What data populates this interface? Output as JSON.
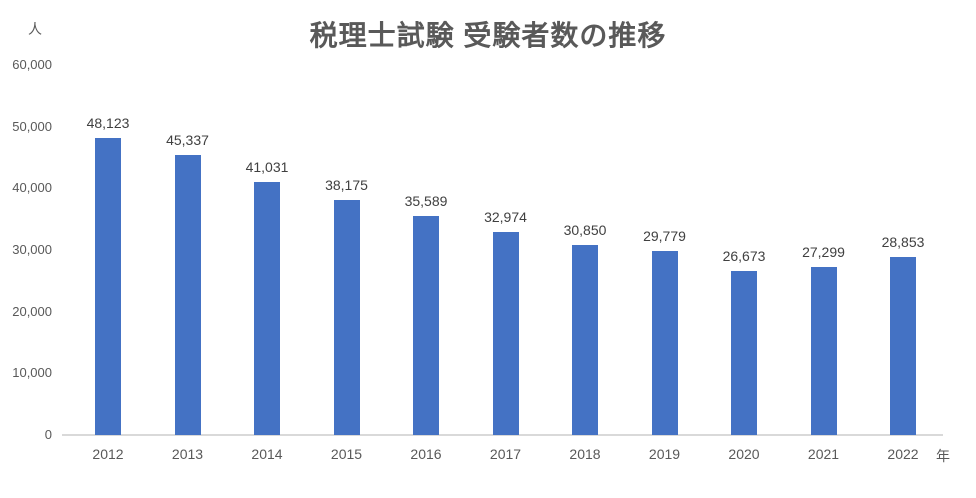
{
  "chart_data": {
    "type": "bar",
    "title": "税理士試験 受験者数の推移",
    "y_unit_label": "人",
    "x_unit_label": "年",
    "categories": [
      "2012",
      "2013",
      "2014",
      "2015",
      "2016",
      "2017",
      "2018",
      "2019",
      "2020",
      "2021",
      "2022"
    ],
    "values": [
      48123,
      45337,
      41031,
      38175,
      35589,
      32974,
      30850,
      29779,
      26673,
      27299,
      28853
    ],
    "value_labels": [
      "48,123",
      "45,337",
      "41,031",
      "38,175",
      "35,589",
      "32,974",
      "30,850",
      "29,779",
      "26,673",
      "27,299",
      "28,853"
    ],
    "y_ticks": [
      "60,000",
      "50,000",
      "40,000",
      "30,000",
      "20,000",
      "10,000",
      "0"
    ],
    "ylim": [
      0,
      60000
    ],
    "xlabel": "年",
    "ylabel": "人",
    "grid": false,
    "legend": "none",
    "data_labels_shown": true,
    "colors": {
      "bar": "#4472c4",
      "title_text": "#595959",
      "axis_text": "#595959",
      "data_label_text": "#404040",
      "axis_line": "#d9d9d9",
      "background": "#ffffff"
    }
  }
}
